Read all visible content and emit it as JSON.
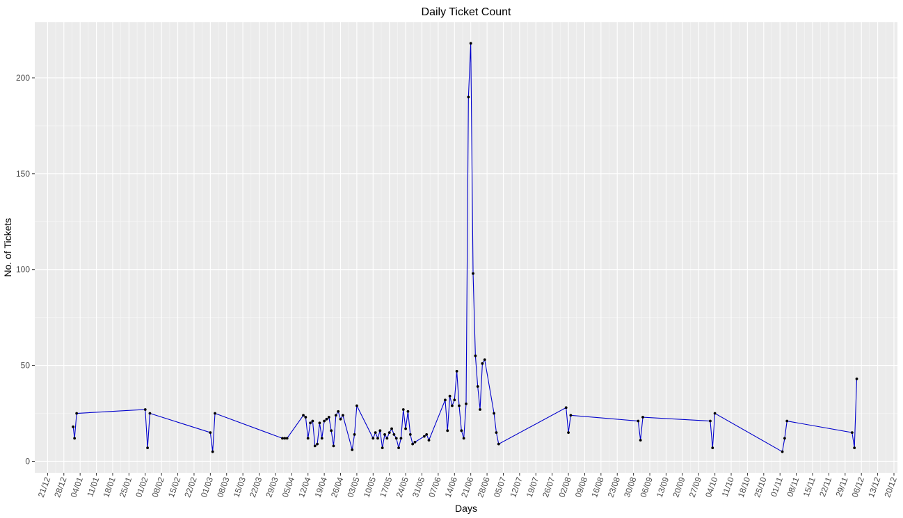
{
  "chart_data": {
    "type": "line",
    "title": "Daily Ticket Count",
    "x_label": "Days",
    "y_label": "No. of Tickets",
    "x": [
      11,
      11.6,
      12.5,
      42,
      43,
      44,
      70,
      71,
      72,
      101,
      102,
      103,
      110,
      111,
      112,
      113,
      114,
      115,
      116,
      117,
      118,
      119,
      120,
      121,
      122,
      123,
      124,
      125,
      126,
      127,
      131,
      132,
      133,
      140,
      141,
      142,
      143,
      144,
      145,
      146,
      147,
      148,
      149,
      150,
      151,
      152,
      153,
      154,
      155,
      156,
      157,
      158,
      162,
      163,
      164,
      171,
      172,
      173,
      174,
      175,
      176,
      177,
      178,
      179,
      180,
      181,
      182,
      183,
      184,
      185,
      186,
      187,
      188,
      192,
      193,
      194,
      223,
      224,
      225,
      254,
      255,
      256,
      285,
      286,
      287,
      316,
      317,
      318,
      346,
      347,
      348
    ],
    "values": [
      18,
      12,
      25,
      27,
      7,
      25,
      15,
      5,
      25,
      12,
      12,
      12,
      24,
      23,
      12,
      20,
      21,
      8,
      9,
      20,
      12,
      21,
      22,
      23,
      16,
      8,
      24,
      26,
      22,
      24,
      6,
      14,
      29,
      12,
      15,
      12,
      16,
      7,
      14,
      12,
      15,
      17,
      14,
      12,
      7,
      12,
      27,
      17,
      26,
      14,
      9,
      10,
      13,
      14,
      11,
      32,
      16,
      34,
      29,
      32,
      47,
      29,
      16,
      12,
      30,
      190,
      218,
      98,
      55,
      39,
      27,
      51,
      53,
      25,
      15,
      9,
      28,
      15,
      24,
      21,
      11,
      23,
      21,
      7,
      25,
      5,
      12,
      21,
      15,
      7,
      43
    ],
    "color": "#0000cc",
    "point_color": "#000000",
    "xlim": [
      -5.5,
      365.5
    ],
    "xticks": [
      {
        "value": 0,
        "label": "21/12"
      },
      {
        "value": 7,
        "label": "28/12"
      },
      {
        "value": 14,
        "label": "04/01"
      },
      {
        "value": 21,
        "label": "11/01"
      },
      {
        "value": 28,
        "label": "18/01"
      },
      {
        "value": 35,
        "label": "25/01"
      },
      {
        "value": 42,
        "label": "01/02"
      },
      {
        "value": 49,
        "label": "08/02"
      },
      {
        "value": 56,
        "label": "15/02"
      },
      {
        "value": 63,
        "label": "22/02"
      },
      {
        "value": 70,
        "label": "01/03"
      },
      {
        "value": 77,
        "label": "08/03"
      },
      {
        "value": 84,
        "label": "15/03"
      },
      {
        "value": 91,
        "label": "22/03"
      },
      {
        "value": 98,
        "label": "29/03"
      },
      {
        "value": 105,
        "label": "05/04"
      },
      {
        "value": 112,
        "label": "12/04"
      },
      {
        "value": 119,
        "label": "19/04"
      },
      {
        "value": 126,
        "label": "26/04"
      },
      {
        "value": 133,
        "label": "03/05"
      },
      {
        "value": 140,
        "label": "10/05"
      },
      {
        "value": 147,
        "label": "17/05"
      },
      {
        "value": 154,
        "label": "24/05"
      },
      {
        "value": 161,
        "label": "31/05"
      },
      {
        "value": 168,
        "label": "07/06"
      },
      {
        "value": 175,
        "label": "14/06"
      },
      {
        "value": 182,
        "label": "21/06"
      },
      {
        "value": 189,
        "label": "28/06"
      },
      {
        "value": 196,
        "label": "05/07"
      },
      {
        "value": 203,
        "label": "12/07"
      },
      {
        "value": 210,
        "label": "19/07"
      },
      {
        "value": 217,
        "label": "26/07"
      },
      {
        "value": 224,
        "label": "02/08"
      },
      {
        "value": 231,
        "label": "09/08"
      },
      {
        "value": 238,
        "label": "16/08"
      },
      {
        "value": 245,
        "label": "23/08"
      },
      {
        "value": 252,
        "label": "30/08"
      },
      {
        "value": 259,
        "label": "06/09"
      },
      {
        "value": 266,
        "label": "13/09"
      },
      {
        "value": 273,
        "label": "20/09"
      },
      {
        "value": 280,
        "label": "27/09"
      },
      {
        "value": 287,
        "label": "04/10"
      },
      {
        "value": 294,
        "label": "11/10"
      },
      {
        "value": 301,
        "label": "18/10"
      },
      {
        "value": 308,
        "label": "25/10"
      },
      {
        "value": 315,
        "label": "01/11"
      },
      {
        "value": 322,
        "label": "08/11"
      },
      {
        "value": 329,
        "label": "15/11"
      },
      {
        "value": 336,
        "label": "22/11"
      },
      {
        "value": 343,
        "label": "29/11"
      },
      {
        "value": 350,
        "label": "06/12"
      },
      {
        "value": 357,
        "label": "13/12"
      },
      {
        "value": 364,
        "label": "20/12"
      }
    ],
    "ylim": [
      -6,
      229
    ],
    "yticks": [
      0,
      50,
      100,
      150,
      200
    ],
    "grid": true
  }
}
